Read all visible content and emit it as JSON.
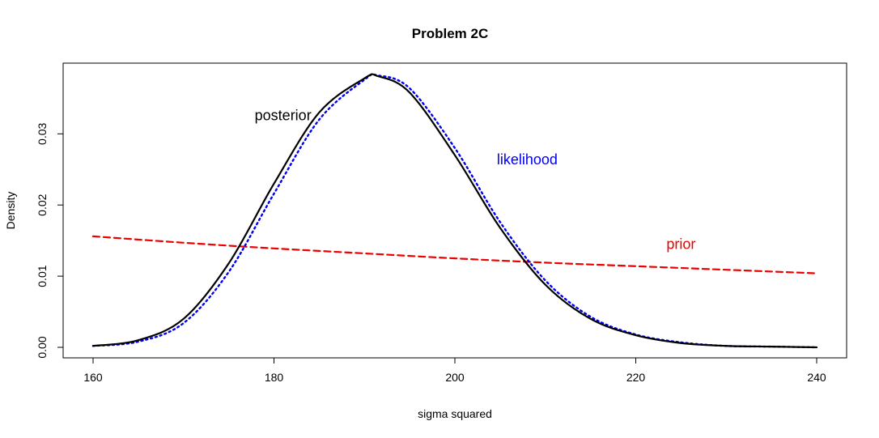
{
  "chart_data": {
    "type": "line",
    "title": "Problem 2C",
    "xlabel": "sigma squared",
    "ylabel": "Density",
    "xlim": [
      160,
      240
    ],
    "ylim": [
      0,
      0.038
    ],
    "x_ticks": [
      160,
      180,
      200,
      220,
      240
    ],
    "x_tick_labels": [
      "160",
      "180",
      "200",
      "220",
      "240"
    ],
    "y_ticks": [
      0.0,
      0.01,
      0.02,
      0.03
    ],
    "y_tick_labels": [
      "0.00",
      "0.01",
      "0.02",
      "0.03"
    ],
    "grid": false,
    "series": [
      {
        "name": "posterior",
        "color": "#000000",
        "style": "solid",
        "x": [
          160,
          165,
          170,
          175,
          180,
          185,
          190,
          191.5,
          195,
          200,
          205,
          210,
          215,
          220,
          225,
          230,
          235,
          240
        ],
        "y": [
          0.0002,
          0.001,
          0.004,
          0.0118,
          0.023,
          0.033,
          0.0378,
          0.0381,
          0.0358,
          0.027,
          0.0168,
          0.0088,
          0.004,
          0.0017,
          0.0006,
          0.0002,
          0.0001,
          0.0
        ]
      },
      {
        "name": "likelihood",
        "color": "#0000ee",
        "style": "dotted",
        "x": [
          160,
          165,
          170,
          175,
          180,
          185,
          190,
          191.5,
          195,
          200,
          205,
          210,
          215,
          220,
          225,
          230,
          235,
          240
        ],
        "y": [
          0.0002,
          0.0008,
          0.0034,
          0.0106,
          0.0216,
          0.032,
          0.0376,
          0.0382,
          0.0364,
          0.028,
          0.0176,
          0.0094,
          0.0043,
          0.0018,
          0.0007,
          0.0002,
          0.0001,
          0.0
        ]
      },
      {
        "name": "prior",
        "color": "#ee0000",
        "style": "dashed",
        "x": [
          160,
          170,
          180,
          190,
          200,
          210,
          220,
          230,
          240
        ],
        "y": [
          0.0156,
          0.0147,
          0.0139,
          0.0132,
          0.0125,
          0.0119,
          0.0114,
          0.0109,
          0.0104
        ]
      }
    ],
    "annotations": [
      {
        "text": "posterior",
        "x": 181,
        "y": 0.0319,
        "color": "#000000"
      },
      {
        "text": "likelihood",
        "x": 208,
        "y": 0.0257,
        "color": "#0000ee"
      },
      {
        "text": "prior",
        "x": 225,
        "y": 0.0138,
        "color": "#ee0000"
      }
    ]
  }
}
